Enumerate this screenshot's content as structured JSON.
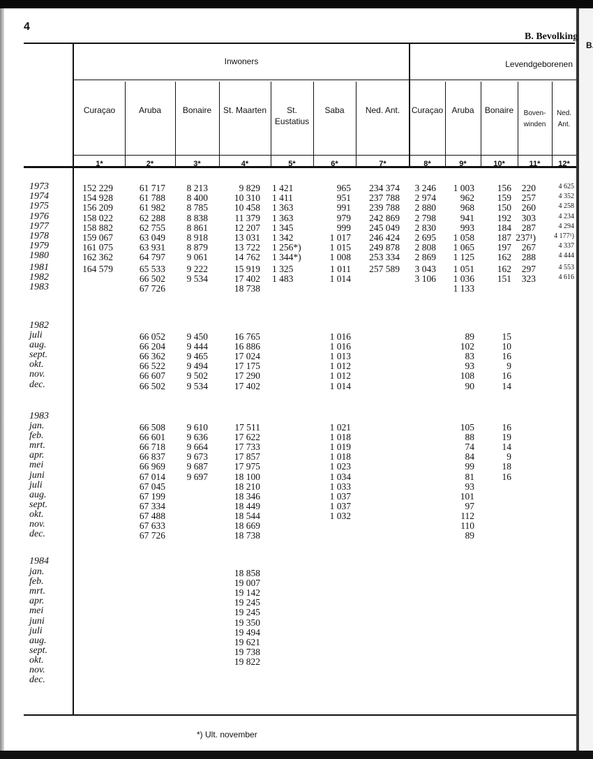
{
  "page_number": "4",
  "section_title": "B. Bevolking",
  "next_page_label": "B.",
  "groups": {
    "inwoners": "Inwoners",
    "levendgeborenen": "Levendgeborenen"
  },
  "columns": [
    {
      "label": "Curaçao",
      "number": "1*"
    },
    {
      "label": "Aruba",
      "number": "2*"
    },
    {
      "label": "Bonaire",
      "number": "3*"
    },
    {
      "label": "St. Maarten",
      "number": "4*"
    },
    {
      "label": "St. Eustatius",
      "number": "5*"
    },
    {
      "label": "Saba",
      "number": "6*"
    },
    {
      "label": "Ned. Ant.",
      "number": "7*"
    },
    {
      "label": "Curaçao",
      "number": "8*"
    },
    {
      "label": "Aruba",
      "number": "9*"
    },
    {
      "label": "Bonaire",
      "number": "10*"
    },
    {
      "label": "Boven-winden",
      "number": "11*"
    },
    {
      "label": "Ned. Ant.",
      "number": "12*"
    }
  ],
  "annual": [
    {
      "label": "1973",
      "values": [
        "152 229",
        "61 717",
        "8 213",
        "9 829",
        "1 421",
        "965",
        "234 374",
        "3 246",
        "1 003",
        "156",
        "220",
        "4 625"
      ]
    },
    {
      "label": "1974",
      "values": [
        "154 928",
        "61 788",
        "8 400",
        "10 310",
        "1 411",
        "951",
        "237 788",
        "2 974",
        "962",
        "159",
        "257",
        "4 352"
      ]
    },
    {
      "label": "1975",
      "values": [
        "156 209",
        "61 982",
        "8 785",
        "10 458",
        "1 363",
        "991",
        "239 788",
        "2 880",
        "968",
        "150",
        "260",
        "4 258"
      ]
    },
    {
      "label": "1976",
      "values": [
        "158 022",
        "62 288",
        "8 838",
        "11 379",
        "1 363",
        "979",
        "242 869",
        "2 798",
        "941",
        "192",
        "303",
        "4 234"
      ]
    },
    {
      "label": "1977",
      "values": [
        "158 882",
        "62 755",
        "8 861",
        "12 207",
        "1 345",
        "999",
        "245 049",
        "2 830",
        "993",
        "184",
        "287",
        "4 294"
      ]
    },
    {
      "label": "1978",
      "values": [
        "159 067",
        "63 049",
        "8 918",
        "13 031",
        "1 342",
        "1 017",
        "246 424",
        "2 695",
        "1 058",
        "187",
        "237¹)",
        "4 177¹)"
      ]
    },
    {
      "label": "1979",
      "values": [
        "161 075",
        "63 931",
        "8 879",
        "13 722",
        "1 256*)",
        "1 015",
        "249 878",
        "2 808",
        "1 065",
        "197",
        "267",
        "4 337"
      ]
    },
    {
      "label": "1980",
      "values": [
        "162 362",
        "64 797",
        "9 061",
        "14 762",
        "1 344*)",
        "1 008",
        "253 334",
        "2 869",
        "1 125",
        "162",
        "288",
        "4 444"
      ]
    },
    {
      "label": "1981",
      "values": [
        "164 579",
        "65 533",
        "9 222",
        "15 919",
        "1 325",
        "1 011",
        "257 589",
        "3 043",
        "1 051",
        "162",
        "297",
        "4 553"
      ]
    },
    {
      "label": "1982",
      "values": [
        null,
        "66 502",
        "9 534",
        "17 402",
        "1 483",
        "1 014",
        null,
        "3 106",
        "1 036",
        "151",
        "323",
        "4 616"
      ]
    },
    {
      "label": "1983",
      "values": [
        null,
        "67 726",
        null,
        "18 738",
        null,
        null,
        null,
        null,
        "1 133",
        null,
        null,
        null
      ]
    }
  ],
  "monthly": [
    {
      "year": "1982",
      "rows": [
        {
          "label": "juli",
          "values": [
            null,
            "66 052",
            "9 450",
            "16 765",
            null,
            "1 016",
            null,
            null,
            "89",
            "15",
            null,
            null
          ]
        },
        {
          "label": "aug.",
          "values": [
            null,
            "66 204",
            "9 444",
            "16 886",
            null,
            "1 016",
            null,
            null,
            "102",
            "10",
            null,
            null
          ]
        },
        {
          "label": "sept.",
          "values": [
            null,
            "66 362",
            "9 465",
            "17 024",
            null,
            "1 013",
            null,
            null,
            "83",
            "16",
            null,
            null
          ]
        },
        {
          "label": "okt.",
          "values": [
            null,
            "66 522",
            "9 494",
            "17 175",
            null,
            "1 012",
            null,
            null,
            "93",
            "9",
            null,
            null
          ]
        },
        {
          "label": "nov.",
          "values": [
            null,
            "66 607",
            "9 502",
            "17 290",
            null,
            "1 012",
            null,
            null,
            "108",
            "16",
            null,
            null
          ]
        },
        {
          "label": "dec.",
          "values": [
            null,
            "66 502",
            "9 534",
            "17 402",
            null,
            "1 014",
            null,
            null,
            "90",
            "14",
            null,
            null
          ]
        }
      ]
    },
    {
      "year": "1983",
      "rows": [
        {
          "label": "jan.",
          "values": [
            null,
            "66 508",
            "9 610",
            "17 511",
            null,
            "1 021",
            null,
            null,
            "105",
            "16",
            null,
            null
          ]
        },
        {
          "label": "feb.",
          "values": [
            null,
            "66 601",
            "9 636",
            "17 622",
            null,
            "1 018",
            null,
            null,
            "88",
            "19",
            null,
            null
          ]
        },
        {
          "label": "mrt.",
          "values": [
            null,
            "66 718",
            "9 664",
            "17 733",
            null,
            "1 019",
            null,
            null,
            "74",
            "14",
            null,
            null
          ]
        },
        {
          "label": "apr.",
          "values": [
            null,
            "66 837",
            "9 673",
            "17 857",
            null,
            "1 018",
            null,
            null,
            "84",
            "9",
            null,
            null
          ]
        },
        {
          "label": "mei",
          "values": [
            null,
            "66 969",
            "9 687",
            "17 975",
            null,
            "1 023",
            null,
            null,
            "99",
            "18",
            null,
            null
          ]
        },
        {
          "label": "juni",
          "values": [
            null,
            "67 014",
            "9 697",
            "18 100",
            null,
            "1 034",
            null,
            null,
            "81",
            "16",
            null,
            null
          ]
        },
        {
          "label": "juli",
          "values": [
            null,
            "67 045",
            null,
            "18 210",
            null,
            "1 033",
            null,
            null,
            "93",
            null,
            null,
            null
          ]
        },
        {
          "label": "aug.",
          "values": [
            null,
            "67 199",
            null,
            "18 346",
            null,
            "1 037",
            null,
            null,
            "101",
            null,
            null,
            null
          ]
        },
        {
          "label": "sept.",
          "values": [
            null,
            "67 334",
            null,
            "18 449",
            null,
            "1 037",
            null,
            null,
            "97",
            null,
            null,
            null
          ]
        },
        {
          "label": "okt.",
          "values": [
            null,
            "67 488",
            null,
            "18 544",
            null,
            "1 032",
            null,
            null,
            "112",
            null,
            null,
            null
          ]
        },
        {
          "label": "nov.",
          "values": [
            null,
            "67 633",
            null,
            "18 669",
            null,
            null,
            null,
            null,
            "110",
            null,
            null,
            null
          ]
        },
        {
          "label": "dec.",
          "values": [
            null,
            "67 726",
            null,
            "18 738",
            null,
            null,
            null,
            null,
            "89",
            null,
            null,
            null
          ]
        }
      ]
    },
    {
      "year": "1984",
      "rows": [
        {
          "label": "jan.",
          "values": [
            null,
            null,
            null,
            "18 858",
            null,
            null,
            null,
            null,
            null,
            null,
            null,
            null
          ]
        },
        {
          "label": "feb.",
          "values": [
            null,
            null,
            null,
            "19 007",
            null,
            null,
            null,
            null,
            null,
            null,
            null,
            null
          ]
        },
        {
          "label": "mrt.",
          "values": [
            null,
            null,
            null,
            "19 142",
            null,
            null,
            null,
            null,
            null,
            null,
            null,
            null
          ]
        },
        {
          "label": "apr.",
          "values": [
            null,
            null,
            null,
            "19 245",
            null,
            null,
            null,
            null,
            null,
            null,
            null,
            null
          ]
        },
        {
          "label": "mei",
          "values": [
            null,
            null,
            null,
            "19 245",
            null,
            null,
            null,
            null,
            null,
            null,
            null,
            null
          ]
        },
        {
          "label": "juni",
          "values": [
            null,
            null,
            null,
            "19 350",
            null,
            null,
            null,
            null,
            null,
            null,
            null,
            null
          ]
        },
        {
          "label": "juli",
          "values": [
            null,
            null,
            null,
            "19 494",
            null,
            null,
            null,
            null,
            null,
            null,
            null,
            null
          ]
        },
        {
          "label": "aug.",
          "values": [
            null,
            null,
            null,
            "19 621",
            null,
            null,
            null,
            null,
            null,
            null,
            null,
            null
          ]
        },
        {
          "label": "sept.",
          "values": [
            null,
            null,
            null,
            "19 738",
            null,
            null,
            null,
            null,
            null,
            null,
            null,
            null
          ]
        },
        {
          "label": "okt.",
          "values": [
            null,
            null,
            null,
            "19 822",
            null,
            null,
            null,
            null,
            null,
            null,
            null,
            null
          ]
        },
        {
          "label": "nov.",
          "values": [
            null,
            null,
            null,
            null,
            null,
            null,
            null,
            null,
            null,
            null,
            null,
            null
          ]
        },
        {
          "label": "dec.",
          "values": [
            null,
            null,
            null,
            null,
            null,
            null,
            null,
            null,
            null,
            null,
            null,
            null
          ]
        }
      ]
    }
  ],
  "footnote": "*) Ult. november"
}
